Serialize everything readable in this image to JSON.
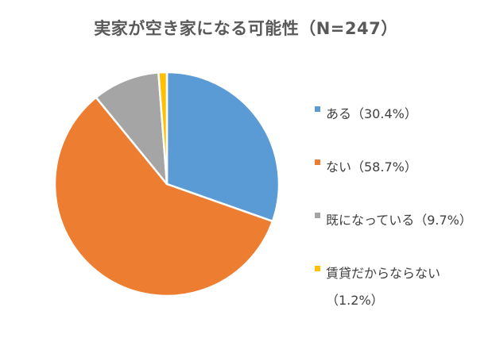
{
  "chart_data": {
    "type": "pie",
    "title": "実家が空き家になる可能性（N=247）",
    "legend_position": "right",
    "slices": [
      {
        "label": "ある（30.4%）",
        "value": 30.4,
        "color": "#5B9BD5"
      },
      {
        "label": "ない（58.7%）",
        "value": 58.7,
        "color": "#ED7D31"
      },
      {
        "label": "既になっている（9.7%）",
        "value": 9.7,
        "color": "#A5A5A5"
      },
      {
        "label": "賃貸だからならない（1.2%）",
        "value": 1.2,
        "color": "#FFC000"
      }
    ]
  }
}
